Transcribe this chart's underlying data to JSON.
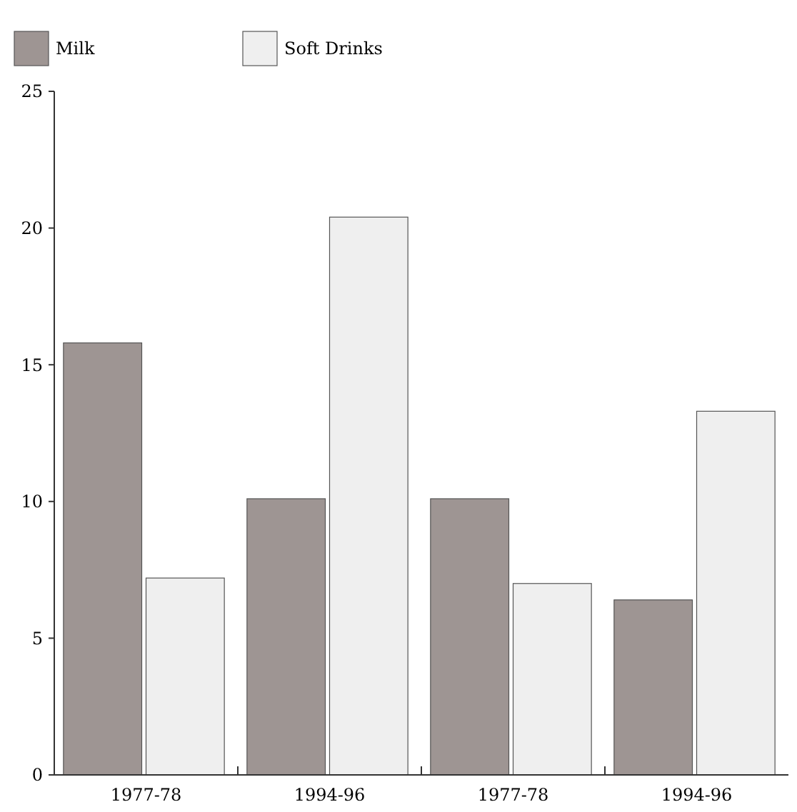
{
  "chart_data": {
    "type": "bar",
    "categories": [
      "1977-78",
      "1994-96",
      "1977-78",
      "1994-96"
    ],
    "series": [
      {
        "name": "Milk",
        "color": "#9e9593",
        "values": [
          15.8,
          10.1,
          10.1,
          6.4
        ]
      },
      {
        "name": "Soft Drinks",
        "color": "#efefef",
        "values": [
          7.2,
          20.4,
          7.0,
          13.3
        ]
      }
    ],
    "ylim": [
      0,
      25
    ],
    "yticks": [
      0,
      5,
      10,
      15,
      20,
      25
    ],
    "grid": false,
    "legend": "top left"
  }
}
